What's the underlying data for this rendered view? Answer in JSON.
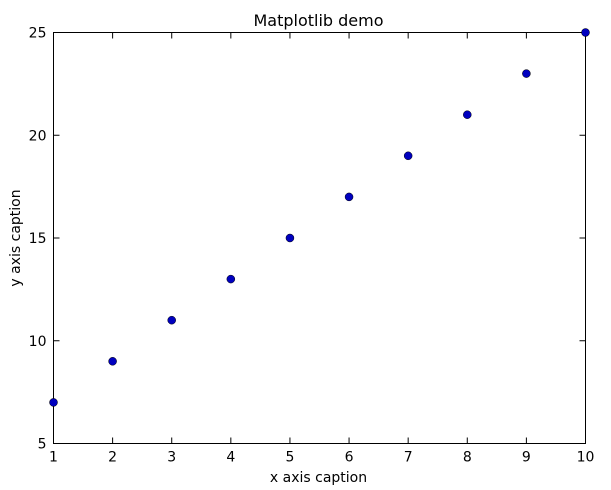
{
  "chart_data": {
    "type": "scatter",
    "title": "Matplotlib demo",
    "xlabel": "x axis caption",
    "ylabel": "y axis caption",
    "x": [
      1,
      2,
      3,
      4,
      5,
      6,
      7,
      8,
      9,
      10
    ],
    "y": [
      7,
      9,
      11,
      13,
      15,
      17,
      19,
      21,
      23,
      25
    ],
    "xlim": [
      1,
      10
    ],
    "ylim": [
      5,
      25
    ],
    "xticks": [
      "1",
      "2",
      "3",
      "4",
      "5",
      "6",
      "7",
      "8",
      "9",
      "10"
    ],
    "yticks": [
      "5",
      "10",
      "15",
      "20",
      "25"
    ],
    "grid": false,
    "marker_color": "#0000bf"
  }
}
